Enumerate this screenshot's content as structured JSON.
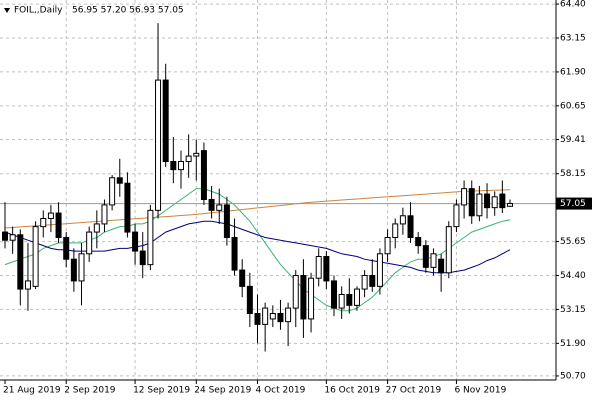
{
  "chart_data": {
    "type": "candlestick",
    "title": "FOIL,,Daily",
    "subtitle": "56.95 57.20 56.93 57.05",
    "categories": [
      "21 Aug 2019",
      null,
      null,
      null,
      null,
      null,
      null,
      null,
      "2 Sep 2019",
      null,
      null,
      null,
      null,
      null,
      null,
      null,
      null,
      "12 Sep 2019",
      null,
      null,
      null,
      null,
      null,
      null,
      null,
      "24 Sep 2019",
      null,
      null,
      null,
      null,
      null,
      null,
      null,
      "4 Oct 2019",
      null,
      null,
      null,
      null,
      null,
      null,
      null,
      null,
      "16 Oct 2019",
      null,
      null,
      null,
      null,
      null,
      null,
      null,
      "27 Oct 2019",
      null,
      null,
      null,
      null,
      null,
      null,
      null,
      null,
      "6 Nov 2019",
      null,
      null,
      null,
      null,
      null,
      null,
      null
    ],
    "open": [
      56.0,
      55.7,
      55.9,
      53.9,
      54.0,
      56.2,
      56.5,
      56.7,
      55.8,
      55.0,
      54.2,
      55.2,
      56.0,
      56.3,
      57.0,
      58.0,
      57.8,
      56.0,
      55.3,
      54.8,
      56.8,
      61.6,
      58.6,
      58.3,
      58.6,
      58.8,
      59.0,
      57.2,
      56.8,
      57.0,
      55.8,
      54.6,
      54.0,
      53.0,
      52.6,
      52.8,
      53.0,
      52.7,
      53.2,
      54.4,
      52.8,
      54.3,
      55.1,
      54.2,
      53.2,
      53.7,
      53.3,
      53.9,
      54.4,
      54.0,
      55.2,
      55.8,
      56.3,
      56.6,
      55.8,
      55.5,
      54.7,
      55.0,
      54.5,
      56.2,
      57.0,
      57.6,
      56.6,
      57.4,
      56.9,
      57.4,
      56.95
    ],
    "high": [
      57.1,
      56.2,
      56.1,
      55.6,
      56.4,
      56.8,
      57.0,
      57.1,
      56.0,
      55.4,
      55.6,
      56.2,
      56.8,
      57.2,
      58.1,
      58.7,
      58.2,
      56.3,
      56.0,
      57.0,
      63.7,
      62.2,
      59.5,
      59.0,
      59.6,
      59.4,
      59.3,
      57.7,
      57.6,
      57.3,
      56.5,
      55.0,
      54.5,
      53.7,
      53.4,
      53.3,
      53.5,
      53.4,
      54.6,
      55.0,
      54.5,
      55.4,
      55.3,
      54.4,
      54.0,
      54.3,
      54.0,
      54.6,
      55.0,
      55.4,
      56.1,
      56.5,
      56.9,
      57.1,
      56.0,
      55.7,
      55.4,
      55.2,
      56.4,
      57.2,
      57.9,
      57.9,
      57.7,
      57.8,
      57.5,
      57.9,
      57.2
    ],
    "low": [
      55.4,
      55.2,
      53.3,
      53.1,
      53.9,
      55.8,
      56.0,
      55.6,
      54.7,
      53.8,
      53.3,
      54.9,
      55.4,
      56.0,
      56.8,
      57.3,
      55.8,
      54.8,
      54.3,
      54.6,
      56.5,
      58.4,
      57.8,
      57.6,
      58.0,
      57.9,
      57.0,
      56.5,
      56.3,
      55.5,
      54.4,
      53.6,
      52.5,
      51.9,
      51.6,
      52.5,
      52.4,
      51.8,
      52.5,
      52.1,
      52.3,
      54.0,
      53.9,
      52.9,
      52.8,
      53.0,
      53.1,
      53.6,
      53.8,
      53.7,
      54.9,
      55.4,
      55.9,
      55.6,
      55.2,
      54.5,
      54.4,
      53.8,
      54.3,
      56.0,
      56.5,
      56.3,
      56.4,
      56.5,
      56.6,
      56.7,
      56.93
    ],
    "close": [
      55.7,
      55.9,
      53.9,
      54.2,
      56.2,
      56.5,
      56.7,
      55.8,
      55.0,
      54.2,
      55.2,
      56.0,
      56.3,
      57.0,
      58.0,
      57.8,
      56.0,
      55.3,
      54.8,
      56.8,
      61.6,
      58.6,
      58.3,
      58.6,
      58.8,
      58.9,
      57.2,
      56.8,
      57.0,
      55.8,
      54.6,
      54.0,
      53.0,
      52.6,
      53.2,
      53.0,
      52.7,
      53.2,
      54.4,
      52.8,
      54.3,
      55.1,
      54.2,
      53.2,
      53.7,
      53.3,
      53.9,
      54.4,
      54.0,
      55.2,
      55.8,
      56.3,
      56.6,
      55.8,
      55.5,
      54.7,
      55.2,
      54.5,
      56.2,
      57.0,
      57.6,
      56.6,
      57.4,
      56.9,
      57.3,
      56.9,
      57.05
    ],
    "series": [
      {
        "color": "#3cb371",
        "values": [
          54.8,
          54.9,
          55.0,
          55.1,
          55.2,
          55.4,
          55.5,
          55.6,
          55.6,
          55.6,
          55.6,
          55.7,
          55.8,
          56.0,
          56.1,
          56.2,
          56.2,
          56.3,
          56.3,
          56.4,
          56.6,
          56.8,
          57.0,
          57.2,
          57.4,
          57.6,
          57.6,
          57.5,
          57.4,
          57.2,
          57.0,
          56.7,
          56.4,
          56.0,
          55.6,
          55.2,
          54.8,
          54.5,
          54.2,
          53.9,
          53.7,
          53.5,
          53.3,
          53.2,
          53.1,
          53.1,
          53.2,
          53.4,
          53.6,
          53.9,
          54.2,
          54.5,
          54.7,
          54.9,
          55.0,
          55.0,
          55.1,
          55.2,
          55.4,
          55.6,
          55.8,
          56.0,
          56.1,
          56.2,
          56.3,
          56.4,
          56.45
        ]
      },
      {
        "color": "#00007f",
        "values": [
          56.0,
          55.9,
          55.8,
          55.7,
          55.6,
          55.5,
          55.4,
          55.35,
          55.35,
          55.3,
          55.3,
          55.3,
          55.3,
          55.3,
          55.35,
          55.4,
          55.4,
          55.45,
          55.5,
          55.6,
          55.8,
          56.0,
          56.1,
          56.2,
          56.3,
          56.35,
          56.4,
          56.4,
          56.35,
          56.3,
          56.2,
          56.1,
          56.0,
          55.9,
          55.8,
          55.75,
          55.7,
          55.65,
          55.6,
          55.55,
          55.5,
          55.45,
          55.4,
          55.3,
          55.2,
          55.15,
          55.1,
          55.0,
          54.95,
          54.9,
          54.85,
          54.8,
          54.75,
          54.7,
          54.6,
          54.55,
          54.5,
          54.5,
          54.5,
          54.55,
          54.6,
          54.7,
          54.8,
          54.95,
          55.05,
          55.2,
          55.35
        ]
      },
      {
        "color": "#cd853f",
        "values": [
          56.15,
          56.17,
          56.19,
          56.21,
          56.23,
          56.25,
          56.27,
          56.29,
          56.31,
          56.33,
          56.35,
          56.37,
          56.39,
          56.41,
          56.43,
          56.45,
          56.47,
          56.49,
          56.51,
          56.53,
          56.55,
          56.57,
          56.59,
          56.61,
          56.63,
          56.65,
          56.68,
          56.71,
          56.74,
          56.77,
          56.8,
          56.83,
          56.86,
          56.89,
          56.92,
          56.95,
          56.98,
          57.01,
          57.04,
          57.07,
          57.1,
          57.12,
          57.14,
          57.16,
          57.18,
          57.2,
          57.22,
          57.24,
          57.26,
          57.28,
          57.3,
          57.32,
          57.34,
          57.36,
          57.38,
          57.4,
          57.42,
          57.44,
          57.46,
          57.48,
          57.5,
          57.51,
          57.52,
          57.53,
          57.54,
          57.55,
          57.56
        ]
      }
    ],
    "last_price": {
      "value": 57.05,
      "label": "57.05"
    },
    "ylim": [
      50.55,
      64.55
    ],
    "yticks": [
      {
        "value": 64.4,
        "label": "64.40"
      },
      63.15,
      {
        "value": 61.9,
        "label": "61.90"
      },
      60.65,
      59.41,
      58.15,
      55.65,
      {
        "value": 54.4,
        "label": "54.40"
      },
      53.15,
      {
        "value": 51.9,
        "label": "51.90"
      },
      {
        "value": 50.7,
        "label": "50.70"
      }
    ],
    "grid": true
  }
}
